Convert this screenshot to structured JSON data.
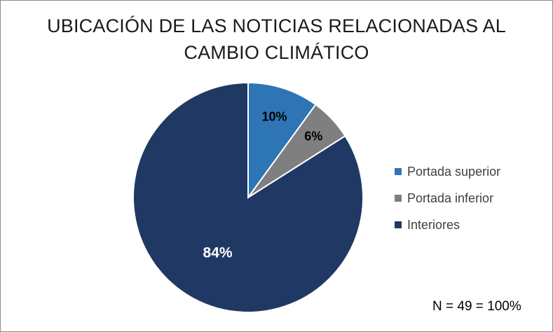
{
  "chart_data": {
    "type": "pie",
    "title_lines": [
      "UBICACIÓN DE LAS NOTICIAS RELACIONADAS AL",
      "CAMBIO CLIMÁTICO"
    ],
    "slices": [
      {
        "label": "Portada superior",
        "value": 10,
        "display": "10%",
        "color": "#2e75b6"
      },
      {
        "label": "Portada inferior",
        "value": 6,
        "display": "6%",
        "color": "#7f7f7f"
      },
      {
        "label": "Interiores",
        "value": 84,
        "display": "84%",
        "color": "#203864"
      }
    ],
    "legend_position": "right"
  },
  "note": "N = 49 = 100%"
}
